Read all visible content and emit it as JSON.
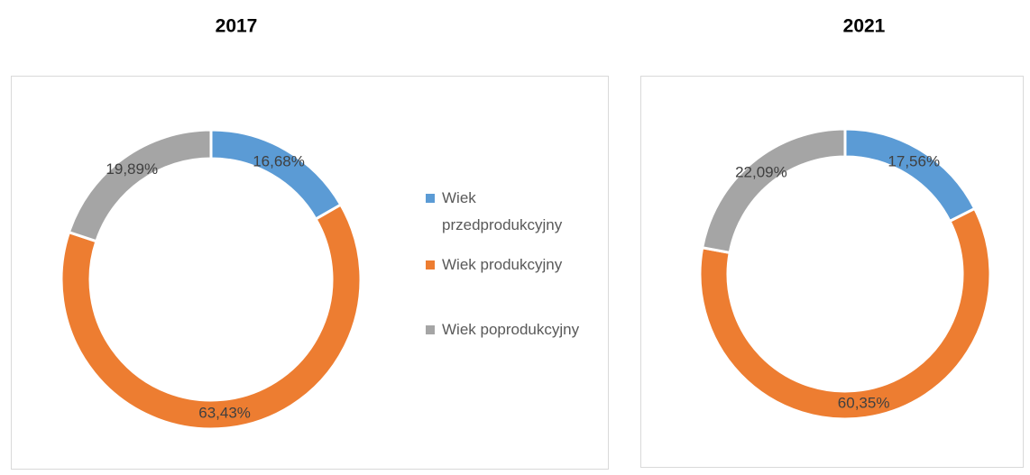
{
  "chart_data": [
    {
      "type": "donut",
      "title": "2017",
      "categories": [
        "Wiek przedprodukcyjny",
        "Wiek produkcyjny",
        "Wiek poprodukcyjny"
      ],
      "values": [
        16.68,
        63.43,
        19.89
      ],
      "value_labels": [
        "16,68%",
        "63,43%",
        "19,89%"
      ],
      "colors": [
        "#5b9bd5",
        "#ed7d31",
        "#a5a5a5"
      ],
      "legend": "right"
    },
    {
      "type": "donut",
      "title": "2021",
      "values": [
        17.56,
        60.35,
        22.09
      ],
      "value_labels": [
        "17,56%",
        "60,35%",
        "22,09%"
      ],
      "colors": [
        "#5b9bd5",
        "#ed7d31",
        "#a5a5a5"
      ]
    }
  ]
}
